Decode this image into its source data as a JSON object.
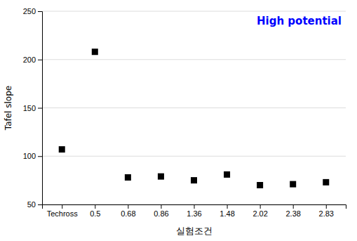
{
  "chart_data": {
    "type": "scatter",
    "categories": [
      "Techross",
      "0.5",
      "0.68",
      "0.86",
      "1.36",
      "1.48",
      "2.02",
      "2.38",
      "2.83"
    ],
    "values": [
      107,
      208,
      78,
      79,
      75,
      81,
      70,
      71,
      73
    ],
    "xlabel": "실험조건",
    "ylabel": "Tafel slope",
    "annotations": [
      {
        "text": "High potential",
        "color": "#0000FF"
      }
    ],
    "ylim": [
      50,
      250
    ],
    "yticks": [
      50,
      100,
      150,
      200,
      250
    ],
    "grid": true,
    "marker": "square",
    "color": "black"
  }
}
